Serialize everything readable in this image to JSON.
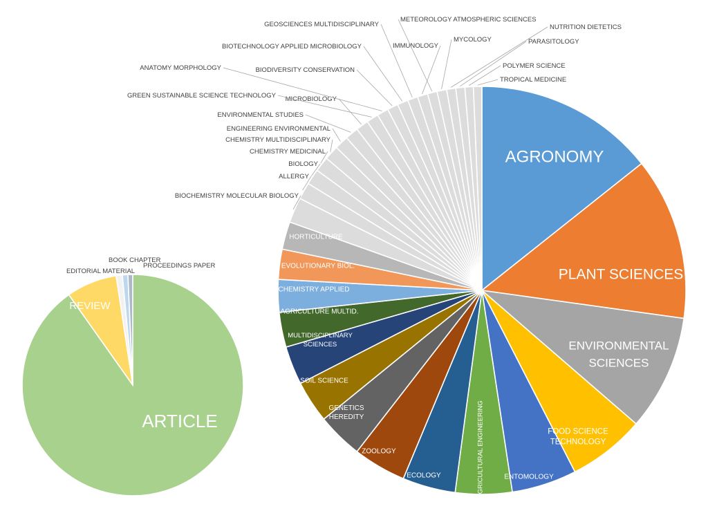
{
  "chart_data": [
    {
      "type": "pie",
      "title": "",
      "slices": [
        {
          "label": "ARTICLE",
          "value": 90.2,
          "color": "#a9d18e"
        },
        {
          "label": "REVIEW",
          "value": 7.4,
          "color": "#ffd966"
        },
        {
          "label": "EDITORIAL MATERIAL",
          "value": 0.9,
          "color": "#f2f2f2"
        },
        {
          "label": "BOOK CHAPTER",
          "value": 0.8,
          "color": "#bdd7ee"
        },
        {
          "label": "PROCEEDINGS PAPER",
          "value": 0.7,
          "color": "#adb9ca"
        }
      ]
    },
    {
      "type": "pie",
      "title": "",
      "slices": [
        {
          "label": "AGRONOMY",
          "value": 15.0,
          "color": "#5b9bd5"
        },
        {
          "label": "PLANT SCIENCES",
          "value": 13.5,
          "color": "#ed7d31"
        },
        {
          "label": "ENVIRONMENTAL SCIENCES",
          "value": 9.6,
          "color": "#a5a5a5"
        },
        {
          "label": "FOOD SCIENCE TECHNOLOGY",
          "value": 6.4,
          "color": "#ffc000"
        },
        {
          "label": "ENTOMOLOGY",
          "value": 5.4,
          "color": "#4472c4"
        },
        {
          "label": "AGRICULTURAL ENGINEERING",
          "value": 4.7,
          "color": "#70ad47"
        },
        {
          "label": "ECOLOGY",
          "value": 4.4,
          "color": "#255e91"
        },
        {
          "label": "ZOOLOGY",
          "value": 4.4,
          "color": "#9e480e"
        },
        {
          "label": "GENETICS HEREDITY",
          "value": 3.8,
          "color": "#636363"
        },
        {
          "label": "SOIL SCIENCE",
          "value": 3.5,
          "color": "#997300"
        },
        {
          "label": "MULTIDISCIPLINARY SCIENCES",
          "value": 3.2,
          "color": "#264478"
        },
        {
          "label": "AGRICULTURE MULTID.",
          "value": 2.9,
          "color": "#43682b"
        },
        {
          "label": "CHEMISTRY APPLIED",
          "value": 2.7,
          "color": "#7cafdd"
        },
        {
          "label": "EVOLUTIONARY BIOL.",
          "value": 2.5,
          "color": "#f1975a"
        },
        {
          "label": "HORTICULTURE",
          "value": 2.3,
          "color": "#b7b7b7"
        },
        {
          "label": "BIOCHEMISTRY MOLECULAR BIOLOGY",
          "value": 2.1,
          "color": "#dcdcdc"
        },
        {
          "label": "ALLERGY",
          "value": 1.4,
          "color": "#dcdcdc"
        },
        {
          "label": "BIOLOGY",
          "value": 1.3,
          "color": "#dcdcdc"
        },
        {
          "label": "CHEMISTRY MEDICINAL",
          "value": 1.25,
          "color": "#dcdcdc"
        },
        {
          "label": "CHEMISTRY MULTIDISCIPLINARY",
          "value": 1.2,
          "color": "#dcdcdc"
        },
        {
          "label": "ENGINEERING ENVIRONMENTAL",
          "value": 1.15,
          "color": "#dcdcdc"
        },
        {
          "label": "ENVIRONMENTAL STUDIES",
          "value": 1.1,
          "color": "#dcdcdc"
        },
        {
          "label": "MICROBIOLOGY",
          "value": 1.05,
          "color": "#dcdcdc"
        },
        {
          "label": "GREEN SUSTAINABLE SCIENCE TECHNOLOGY",
          "value": 1.0,
          "color": "#dcdcdc"
        },
        {
          "label": "ANATOMY MORPHOLOGY",
          "value": 0.95,
          "color": "#dcdcdc"
        },
        {
          "label": "BIODIVERSITY CONSERVATION",
          "value": 0.9,
          "color": "#dcdcdc"
        },
        {
          "label": "BIOTECHNOLOGY APPLIED MICROBIOLOGY",
          "value": 0.9,
          "color": "#dcdcdc"
        },
        {
          "label": "GEOSCIENCES MULTIDISCIPLINARY",
          "value": 0.85,
          "color": "#dcdcdc"
        },
        {
          "label": "IMMUNOLOGY",
          "value": 0.85,
          "color": "#dcdcdc"
        },
        {
          "label": "METEOROLOGY ATMOSPHERIC SCIENCES",
          "value": 0.8,
          "color": "#dcdcdc"
        },
        {
          "label": "MYCOLOGY",
          "value": 0.8,
          "color": "#dcdcdc"
        },
        {
          "label": "NUTRITION DIETETICS",
          "value": 0.75,
          "color": "#dcdcdc"
        },
        {
          "label": "PARASITOLOGY",
          "value": 0.75,
          "color": "#dcdcdc"
        },
        {
          "label": "POLYMER SCIENCE",
          "value": 0.7,
          "color": "#dcdcdc"
        },
        {
          "label": "TROPICAL MEDICINE",
          "value": 0.7,
          "color": "#dcdcdc"
        }
      ]
    }
  ]
}
